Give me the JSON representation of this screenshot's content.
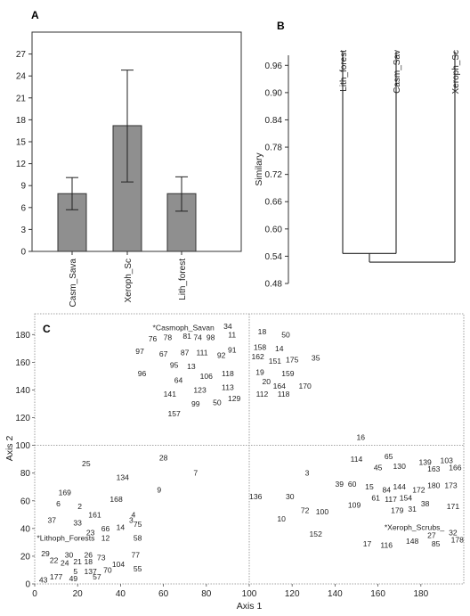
{
  "chart_data": [
    {
      "panel": "A",
      "type": "bar",
      "categories": [
        "Casm_Sava",
        "Xeroph_Sc",
        "Lith_forest"
      ],
      "values": [
        7.9,
        17.2,
        7.9
      ],
      "error_low": [
        5.7,
        9.5,
        5.5
      ],
      "error_high": [
        10.1,
        24.8,
        10.2
      ],
      "yticks": [
        0,
        3,
        6,
        9,
        12,
        15,
        18,
        21,
        24,
        27
      ],
      "ylim": [
        0,
        30
      ],
      "bar_color": "#8f8f8f"
    },
    {
      "panel": "B",
      "type": "dendrogram",
      "leaves": [
        "Lith_forest",
        "Casm_Sav",
        "Xeroph_Sc"
      ],
      "ylabel": "Similary",
      "yticks": [
        "0.96",
        "0.90",
        "0.84",
        "0.78",
        "0.72",
        "0.66",
        "0.60",
        "0.54",
        "0.48"
      ],
      "ylim": [
        0.48,
        0.99
      ],
      "merges": [
        {
          "left": "Lith_forest",
          "right": "Casm_Sav",
          "similarity": 0.546
        },
        {
          "left": "Lith_forest+Casm_Sav",
          "right": "Xeroph_Sc",
          "similarity": 0.527
        }
      ]
    },
    {
      "panel": "C",
      "type": "scatter",
      "xlabel": "Axis 1",
      "ylabel": "Axis 2",
      "xticks": [
        "0",
        "20",
        "40",
        "60",
        "80",
        "100",
        "120",
        "140",
        "160",
        "180"
      ],
      "yticks": [
        "0",
        "20",
        "40",
        "60",
        "80",
        "100",
        "120",
        "140",
        "160",
        "180"
      ],
      "xlim": [
        0,
        200
      ],
      "ylim": [
        0,
        195
      ],
      "group_labels": [
        {
          "text": "*Casmoph_Savan",
          "x": 55,
          "y": 185
        },
        {
          "text": "*Lithoph_Forests",
          "x": 1,
          "y": 33
        },
        {
          "text": "*Xeroph_Scrubs_",
          "x": 163,
          "y": 41
        }
      ],
      "points": [
        {
          "label": "34",
          "x": 90,
          "y": 186
        },
        {
          "label": "18",
          "x": 106,
          "y": 182
        },
        {
          "label": "50",
          "x": 117,
          "y": 180
        },
        {
          "label": "76",
          "x": 55,
          "y": 177
        },
        {
          "label": "78",
          "x": 62,
          "y": 178
        },
        {
          "label": "81",
          "x": 71,
          "y": 179
        },
        {
          "label": "74",
          "x": 76,
          "y": 178
        },
        {
          "label": "98",
          "x": 82,
          "y": 178
        },
        {
          "label": "11",
          "x": 92,
          "y": 180
        },
        {
          "label": "158",
          "x": 105,
          "y": 171
        },
        {
          "label": "14",
          "x": 114,
          "y": 170
        },
        {
          "label": "97",
          "x": 49,
          "y": 168
        },
        {
          "label": "67",
          "x": 60,
          "y": 166
        },
        {
          "label": "87",
          "x": 70,
          "y": 167
        },
        {
          "label": "111",
          "x": 78,
          "y": 167
        },
        {
          "label": "92",
          "x": 87,
          "y": 165
        },
        {
          "label": "91",
          "x": 92,
          "y": 169
        },
        {
          "label": "162",
          "x": 104,
          "y": 164
        },
        {
          "label": "151",
          "x": 112,
          "y": 161
        },
        {
          "label": "175",
          "x": 120,
          "y": 162
        },
        {
          "label": "35",
          "x": 131,
          "y": 163
        },
        {
          "label": "95",
          "x": 65,
          "y": 158
        },
        {
          "label": "13",
          "x": 73,
          "y": 157
        },
        {
          "label": "96",
          "x": 50,
          "y": 152
        },
        {
          "label": "64",
          "x": 67,
          "y": 147
        },
        {
          "label": "106",
          "x": 80,
          "y": 150
        },
        {
          "label": "118",
          "x": 90,
          "y": 152
        },
        {
          "label": "19",
          "x": 105,
          "y": 153
        },
        {
          "label": "159",
          "x": 118,
          "y": 152
        },
        {
          "label": "20",
          "x": 108,
          "y": 146
        },
        {
          "label": "164",
          "x": 114,
          "y": 143
        },
        {
          "label": "170",
          "x": 126,
          "y": 143
        },
        {
          "label": "123",
          "x": 77,
          "y": 140
        },
        {
          "label": "113",
          "x": 90,
          "y": 142
        },
        {
          "label": "141",
          "x": 63,
          "y": 137
        },
        {
          "label": "112",
          "x": 106,
          "y": 137
        },
        {
          "label": "118",
          "x": 116,
          "y": 137
        },
        {
          "label": "129",
          "x": 93,
          "y": 134
        },
        {
          "label": "99",
          "x": 75,
          "y": 130
        },
        {
          "label": "50",
          "x": 85,
          "y": 131
        },
        {
          "label": "157",
          "x": 65,
          "y": 123
        },
        {
          "label": "16",
          "x": 152,
          "y": 106
        },
        {
          "label": "28",
          "x": 60,
          "y": 91
        },
        {
          "label": "25",
          "x": 24,
          "y": 87
        },
        {
          "label": "114",
          "x": 150,
          "y": 90
        },
        {
          "label": "65",
          "x": 165,
          "y": 92
        },
        {
          "label": "45",
          "x": 160,
          "y": 84
        },
        {
          "label": "130",
          "x": 170,
          "y": 85
        },
        {
          "label": "139",
          "x": 182,
          "y": 88
        },
        {
          "label": "103",
          "x": 192,
          "y": 89
        },
        {
          "label": "163",
          "x": 186,
          "y": 83
        },
        {
          "label": "166",
          "x": 196,
          "y": 84
        },
        {
          "label": "7",
          "x": 75,
          "y": 80
        },
        {
          "label": "3",
          "x": 127,
          "y": 80
        },
        {
          "label": "134",
          "x": 41,
          "y": 77
        },
        {
          "label": "39",
          "x": 142,
          "y": 72
        },
        {
          "label": "60",
          "x": 148,
          "y": 72
        },
        {
          "label": "15",
          "x": 156,
          "y": 70
        },
        {
          "label": "84",
          "x": 164,
          "y": 68
        },
        {
          "label": "144",
          "x": 170,
          "y": 70
        },
        {
          "label": "172",
          "x": 179,
          "y": 68
        },
        {
          "label": "180",
          "x": 186,
          "y": 71
        },
        {
          "label": "173",
          "x": 194,
          "y": 71
        },
        {
          "label": "9",
          "x": 58,
          "y": 68
        },
        {
          "label": "169",
          "x": 14,
          "y": 66
        },
        {
          "label": "136",
          "x": 103,
          "y": 63
        },
        {
          "label": "30",
          "x": 119,
          "y": 63
        },
        {
          "label": "61",
          "x": 159,
          "y": 62
        },
        {
          "label": "117",
          "x": 166,
          "y": 61
        },
        {
          "label": "154",
          "x": 173,
          "y": 62
        },
        {
          "label": "38",
          "x": 182,
          "y": 58
        },
        {
          "label": "171",
          "x": 195,
          "y": 56
        },
        {
          "label": "168",
          "x": 38,
          "y": 61
        },
        {
          "label": "6",
          "x": 11,
          "y": 58
        },
        {
          "label": "2",
          "x": 21,
          "y": 56
        },
        {
          "label": "109",
          "x": 149,
          "y": 57
        },
        {
          "label": "179",
          "x": 169,
          "y": 53
        },
        {
          "label": "31",
          "x": 176,
          "y": 54
        },
        {
          "label": "72",
          "x": 126,
          "y": 53
        },
        {
          "label": "100",
          "x": 134,
          "y": 52
        },
        {
          "label": "161",
          "x": 28,
          "y": 50
        },
        {
          "label": "4",
          "x": 46,
          "y": 50
        },
        {
          "label": "3",
          "x": 45,
          "y": 46
        },
        {
          "label": "10",
          "x": 115,
          "y": 47
        },
        {
          "label": "37",
          "x": 8,
          "y": 46
        },
        {
          "label": "33",
          "x": 20,
          "y": 44
        },
        {
          "label": "14",
          "x": 40,
          "y": 41
        },
        {
          "label": "75",
          "x": 48,
          "y": 43
        },
        {
          "label": "66",
          "x": 33,
          "y": 40
        },
        {
          "label": "23",
          "x": 26,
          "y": 37
        },
        {
          "label": "152",
          "x": 131,
          "y": 36
        },
        {
          "label": "12",
          "x": 33,
          "y": 33
        },
        {
          "label": "58",
          "x": 48,
          "y": 33
        },
        {
          "label": "17",
          "x": 155,
          "y": 29
        },
        {
          "label": "116",
          "x": 164,
          "y": 28
        },
        {
          "label": "148",
          "x": 176,
          "y": 31
        },
        {
          "label": "27",
          "x": 185,
          "y": 35
        },
        {
          "label": "32",
          "x": 195,
          "y": 37
        },
        {
          "label": "178",
          "x": 197,
          "y": 32
        },
        {
          "label": "85",
          "x": 187,
          "y": 29
        },
        {
          "label": "29",
          "x": 5,
          "y": 22
        },
        {
          "label": "30",
          "x": 16,
          "y": 21
        },
        {
          "label": "26",
          "x": 25,
          "y": 21
        },
        {
          "label": "73",
          "x": 31,
          "y": 19
        },
        {
          "label": "77",
          "x": 47,
          "y": 21
        },
        {
          "label": "22",
          "x": 9,
          "y": 17
        },
        {
          "label": "24",
          "x": 14,
          "y": 15
        },
        {
          "label": "21",
          "x": 20,
          "y": 16
        },
        {
          "label": "18",
          "x": 25,
          "y": 16
        },
        {
          "label": "104",
          "x": 39,
          "y": 14
        },
        {
          "label": "5",
          "x": 19,
          "y": 9
        },
        {
          "label": "137",
          "x": 26,
          "y": 9
        },
        {
          "label": "70",
          "x": 34,
          "y": 10
        },
        {
          "label": "55",
          "x": 48,
          "y": 11
        },
        {
          "label": "43",
          "x": 4,
          "y": 3
        },
        {
          "label": "177",
          "x": 10,
          "y": 5
        },
        {
          "label": "49",
          "x": 18,
          "y": 4
        },
        {
          "label": "57",
          "x": 29,
          "y": 5
        }
      ]
    }
  ]
}
